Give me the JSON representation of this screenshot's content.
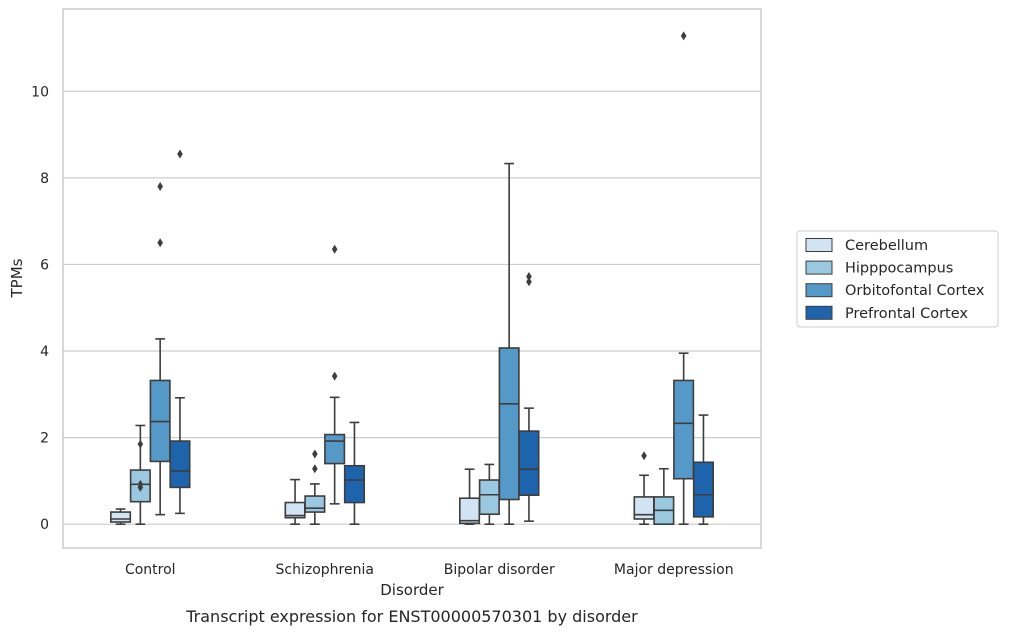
{
  "chart_data": {
    "type": "box",
    "title": "Transcript expression for ENST00000570301 by disorder",
    "xlabel": "Disorder",
    "ylabel": "TPMs",
    "ylim": [
      -0.55,
      11.9
    ],
    "yticks": [
      0,
      2,
      4,
      6,
      8,
      10
    ],
    "grid": "horizontal",
    "legend_position": "right",
    "categories": [
      "Control",
      "Schizophrenia",
      "Bipolar disorder",
      "Major depression"
    ],
    "series": [
      {
        "name": "Cerebellum",
        "color": "#d2e3f3",
        "boxes": [
          {
            "whislo": 0.0,
            "q1": 0.05,
            "med": 0.12,
            "q3": 0.28,
            "whishi": 0.35,
            "fliers": []
          },
          {
            "whislo": 0.0,
            "q1": 0.15,
            "med": 0.2,
            "q3": 0.5,
            "whishi": 1.03,
            "fliers": []
          },
          {
            "whislo": 0.0,
            "q1": 0.02,
            "med": 0.08,
            "q3": 0.6,
            "whishi": 1.27,
            "fliers": []
          },
          {
            "whislo": 0.0,
            "q1": 0.12,
            "med": 0.22,
            "q3": 0.63,
            "whishi": 1.13,
            "fliers": [
              1.58
            ]
          }
        ]
      },
      {
        "name": "Hipppocampus",
        "color": "#9ac8e0",
        "boxes": [
          {
            "whislo": 0.0,
            "q1": 0.52,
            "med": 0.92,
            "q3": 1.25,
            "whishi": 2.28,
            "fliers": [
              0.85,
              0.92,
              1.85
            ]
          },
          {
            "whislo": 0.0,
            "q1": 0.28,
            "med": 0.37,
            "q3": 0.65,
            "whishi": 0.93,
            "fliers": [
              1.28,
              1.62
            ]
          },
          {
            "whislo": 0.0,
            "q1": 0.23,
            "med": 0.68,
            "q3": 1.02,
            "whishi": 1.38,
            "fliers": []
          },
          {
            "whislo": 0.0,
            "q1": 0.0,
            "med": 0.32,
            "q3": 0.63,
            "whishi": 1.28,
            "fliers": []
          }
        ]
      },
      {
        "name": "Orbitofontal Cortex",
        "color": "#5599c8",
        "boxes": [
          {
            "whislo": 0.22,
            "q1": 1.45,
            "med": 2.37,
            "q3": 3.32,
            "whishi": 4.28,
            "fliers": [
              6.5,
              7.8
            ]
          },
          {
            "whislo": 0.47,
            "q1": 1.4,
            "med": 1.92,
            "q3": 2.07,
            "whishi": 2.93,
            "fliers": [
              3.42,
              6.35
            ]
          },
          {
            "whislo": 0.0,
            "q1": 0.57,
            "med": 2.78,
            "q3": 4.07,
            "whishi": 8.33,
            "fliers": []
          },
          {
            "whislo": 0.0,
            "q1": 1.05,
            "med": 2.33,
            "q3": 3.32,
            "whishi": 3.95,
            "fliers": [
              11.28
            ]
          }
        ]
      },
      {
        "name": "Prefrontal Cortex",
        "color": "#1d64ac",
        "boxes": [
          {
            "whislo": 0.25,
            "q1": 0.85,
            "med": 1.23,
            "q3": 1.92,
            "whishi": 2.92,
            "fliers": [
              8.55
            ]
          },
          {
            "whislo": 0.0,
            "q1": 0.5,
            "med": 1.02,
            "q3": 1.35,
            "whishi": 2.35,
            "fliers": []
          },
          {
            "whislo": 0.07,
            "q1": 0.67,
            "med": 1.27,
            "q3": 2.15,
            "whishi": 2.68,
            "fliers": [
              5.6,
              5.72
            ]
          },
          {
            "whislo": 0.0,
            "q1": 0.17,
            "med": 0.68,
            "q3": 1.43,
            "whishi": 2.52,
            "fliers": []
          }
        ]
      }
    ]
  }
}
